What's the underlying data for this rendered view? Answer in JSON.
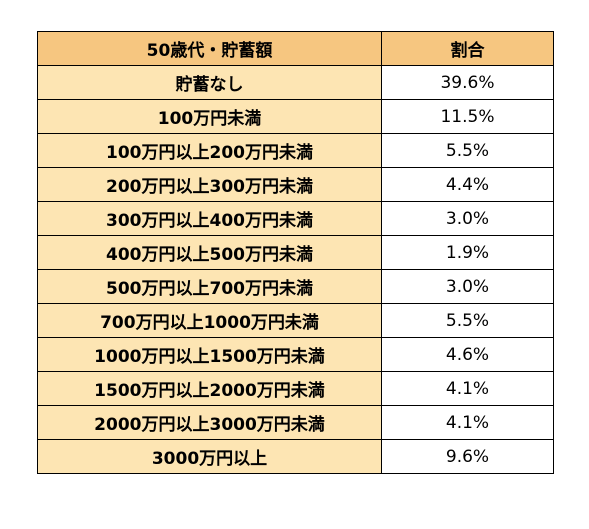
{
  "table": {
    "headers": [
      "50歳代・貯蓄額",
      "割合"
    ],
    "rows": [
      {
        "label": "貯蓄なし",
        "value": "39.6%"
      },
      {
        "label": "100万円未満",
        "value": "11.5%"
      },
      {
        "label": "100万円以上200万円未満",
        "value": "5.5%"
      },
      {
        "label": "200万円以上300万円未満",
        "value": "4.4%"
      },
      {
        "label": "300万円以上400万円未満",
        "value": "3.0%"
      },
      {
        "label": "400万円以上500万円未満",
        "value": "1.9%"
      },
      {
        "label": "500万円以上700万円未満",
        "value": "3.0%"
      },
      {
        "label": "700万円以上1000万円未満",
        "value": "5.5%"
      },
      {
        "label": "1000万円以上1500万円未満",
        "value": "4.6%"
      },
      {
        "label": "1500万円以上2000万円未満",
        "value": "4.1%"
      },
      {
        "label": "2000万円以上3000万円未満",
        "value": "4.1%"
      },
      {
        "label": "3000万円以上",
        "value": "9.6%"
      }
    ]
  },
  "colors": {
    "header_bg": "#f6c680",
    "label_bg": "#fde5b3",
    "value_bg": "#ffffff",
    "border": "#000000"
  }
}
